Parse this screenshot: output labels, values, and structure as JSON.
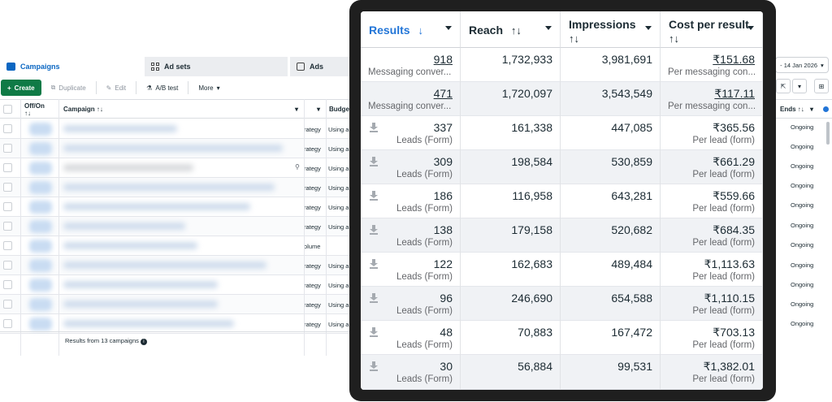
{
  "background": {
    "tabs": [
      {
        "label": "Campaigns"
      },
      {
        "label": "Ad sets"
      },
      {
        "label": "Ads"
      }
    ],
    "toolbar": {
      "create": "Create",
      "duplicate": "Duplicate",
      "edit": "Edit",
      "ab_test": "A/B test",
      "more": "More"
    },
    "columns": {
      "off_on": "Off/On",
      "sort_glyph": "↑↓",
      "campaign": "Campaign",
      "budget": "Budge",
      "ends": "Ends"
    },
    "rows": [
      {
        "strategy": "rategy",
        "using": "Using a"
      },
      {
        "strategy": "rategy",
        "using": "Using a"
      },
      {
        "strategy": "rategy",
        "using": "Using a"
      },
      {
        "strategy": "rategy",
        "using": "Using a"
      },
      {
        "strategy": "rategy",
        "using": "Using a"
      },
      {
        "strategy": "rategy",
        "using": "Using a"
      },
      {
        "strategy": "olume",
        "using": ""
      },
      {
        "strategy": "rategy",
        "using": "Using a"
      },
      {
        "strategy": "rategy",
        "using": "Using a"
      },
      {
        "strategy": "rategy",
        "using": "Using a"
      },
      {
        "strategy": "rategy",
        "using": "Using a"
      }
    ],
    "ends_values": [
      "Ongoing",
      "Ongoing",
      "Ongoing",
      "Ongoing",
      "Ongoing",
      "Ongoing",
      "Ongoing",
      "Ongoing",
      "Ongoing",
      "Ongoing",
      "Ongoing"
    ],
    "footer": "Results from 13 campaigns",
    "date_range": "- 14 Jan 2026"
  },
  "panel": {
    "headers": {
      "results": "Results",
      "results_sort": "↓",
      "reach": "Reach",
      "reach_sort": "↑↓",
      "impressions": "Impressions",
      "impressions_sort": "↑↓",
      "cost": "Cost per result",
      "cost_sort": "↑↓"
    },
    "rows": [
      {
        "results": "918",
        "results_label": "Messaging conver...",
        "reach": "1,732,933",
        "impressions": "3,981,691",
        "cost": "₹151.68",
        "cost_label": "Per messaging con..."
      },
      {
        "results": "471",
        "results_label": "Messaging conver...",
        "reach": "1,720,097",
        "impressions": "3,543,549",
        "cost": "₹117.11",
        "cost_label": "Per messaging con..."
      },
      {
        "results": "337",
        "results_label": "Leads (Form)",
        "reach": "161,338",
        "impressions": "447,085",
        "cost": "₹365.56",
        "cost_label": "Per lead (form)"
      },
      {
        "results": "309",
        "results_label": "Leads (Form)",
        "reach": "198,584",
        "impressions": "530,859",
        "cost": "₹661.29",
        "cost_label": "Per lead (form)"
      },
      {
        "results": "186",
        "results_label": "Leads (Form)",
        "reach": "116,958",
        "impressions": "643,281",
        "cost": "₹559.66",
        "cost_label": "Per lead (form)"
      },
      {
        "results": "138",
        "results_label": "Leads (Form)",
        "reach": "179,158",
        "impressions": "520,682",
        "cost": "₹684.35",
        "cost_label": "Per lead (form)"
      },
      {
        "results": "122",
        "results_label": "Leads (Form)",
        "reach": "162,683",
        "impressions": "489,484",
        "cost": "₹1,113.63",
        "cost_label": "Per lead (form)"
      },
      {
        "results": "96",
        "results_label": "Leads (Form)",
        "reach": "246,690",
        "impressions": "654,588",
        "cost": "₹1,110.15",
        "cost_label": "Per lead (form)"
      },
      {
        "results": "48",
        "results_label": "Leads (Form)",
        "reach": "70,883",
        "impressions": "167,472",
        "cost": "₹703.13",
        "cost_label": "Per lead (form)"
      },
      {
        "results": "30",
        "results_label": "Leads (Form)",
        "reach": "56,884",
        "impressions": "99,531",
        "cost": "₹1,382.01",
        "cost_label": "Per lead (form)"
      }
    ]
  },
  "colors": {
    "accent_blue": "#2275d7",
    "create_green": "#0f7a46",
    "panel_frame": "#1f1f1f"
  }
}
